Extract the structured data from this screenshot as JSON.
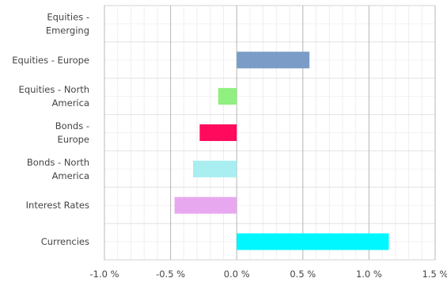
{
  "chart_data": {
    "type": "bar",
    "orientation": "horizontal",
    "categories": [
      [
        "Equities -",
        "Emerging"
      ],
      [
        "Equities - Europe"
      ],
      [
        "Equities - North",
        "America"
      ],
      [
        "Bonds -",
        "Europe"
      ],
      [
        "Bonds - North",
        "America"
      ],
      [
        "Interest Rates"
      ],
      [
        "Currencies"
      ]
    ],
    "values": [
      0.0,
      0.55,
      -0.14,
      -0.28,
      -0.33,
      -0.47,
      1.15
    ],
    "colors": [
      "#7a9cc6",
      "#7a9cc6",
      "#8ff07f",
      "#ff0a5c",
      "#a9eef0",
      "#e8a8f0",
      "#00f7ff"
    ],
    "xlim": [
      -1.0,
      1.5
    ],
    "ticks": [
      -1.0,
      -0.5,
      0.0,
      0.5,
      1.0,
      1.5
    ],
    "tick_labels": [
      "-1.0 %",
      "-0.5 %",
      "0.0 %",
      "0.5 %",
      "1.0 %",
      "1.5 %"
    ],
    "grid": true,
    "legend": "none"
  }
}
